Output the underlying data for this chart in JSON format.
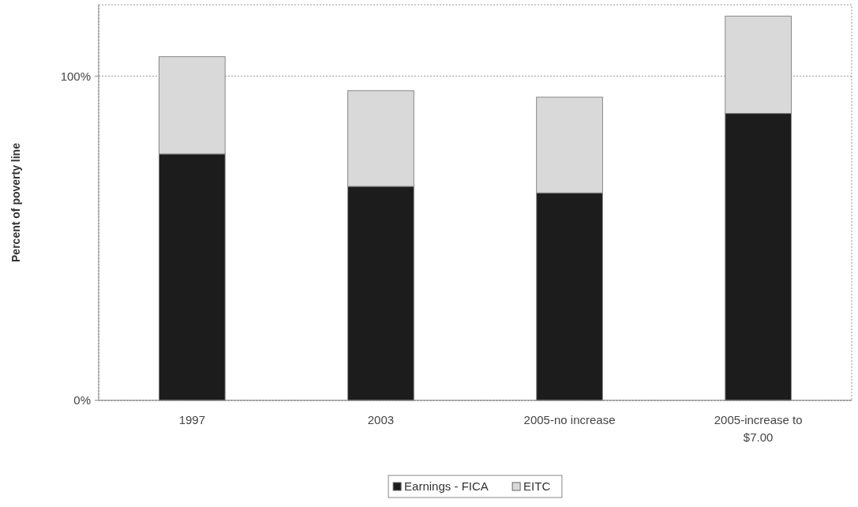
{
  "chart_data": {
    "type": "bar",
    "stacked": true,
    "ylabel": "Percent of poverty line",
    "categories": [
      "1997",
      "2003",
      "2005-no increase",
      "2005-increase to $7.00"
    ],
    "series": [
      {
        "name": "Earnings - FICA",
        "color": "#1c1c1c",
        "values": [
          76,
          66,
          64,
          88.5
        ]
      },
      {
        "name": "EITC",
        "color": "#d9d9d9",
        "values": [
          30,
          29.5,
          29.5,
          30
        ]
      }
    ],
    "ylim": [
      0,
      122
    ],
    "yticks": [
      {
        "value": 0,
        "label": "0%"
      },
      {
        "value": 100,
        "label": "100%"
      }
    ],
    "grid": "y",
    "legend": "bottom"
  }
}
